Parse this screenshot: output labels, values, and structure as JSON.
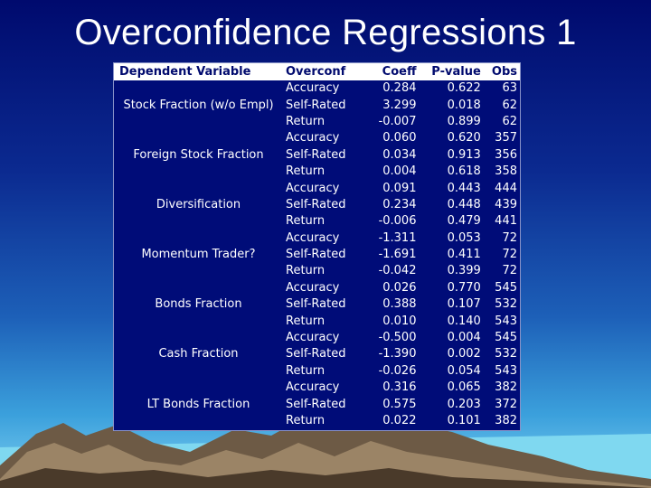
{
  "title": "Overconfidence Regressions 1",
  "colors": {
    "table_bg": "#000c78",
    "header_bg": "#ffffff",
    "header_text": "#000a6e"
  },
  "table": {
    "headers": [
      "Dependent Variable",
      "Overconf",
      "Coeff",
      "P-value",
      "Obs"
    ],
    "groups": [
      {
        "dependent": "Stock Fraction (w/o Empl)",
        "rows": [
          [
            "Accuracy",
            "0.284",
            "0.622",
            "63"
          ],
          [
            "Self-Rated",
            "3.299",
            "0.018",
            "62"
          ],
          [
            "Return",
            "-0.007",
            "0.899",
            "62"
          ]
        ]
      },
      {
        "dependent": "Foreign Stock Fraction",
        "rows": [
          [
            "Accuracy",
            "0.060",
            "0.620",
            "357"
          ],
          [
            "Self-Rated",
            "0.034",
            "0.913",
            "356"
          ],
          [
            "Return",
            "0.004",
            "0.618",
            "358"
          ]
        ]
      },
      {
        "dependent": "Diversification",
        "rows": [
          [
            "Accuracy",
            "0.091",
            "0.443",
            "444"
          ],
          [
            "Self-Rated",
            "0.234",
            "0.448",
            "439"
          ],
          [
            "Return",
            "-0.006",
            "0.479",
            "441"
          ]
        ]
      },
      {
        "dependent": "Momentum Trader?",
        "rows": [
          [
            "Accuracy",
            "-1.311",
            "0.053",
            "72"
          ],
          [
            "Self-Rated",
            "-1.691",
            "0.411",
            "72"
          ],
          [
            "Return",
            "-0.042",
            "0.399",
            "72"
          ]
        ]
      },
      {
        "dependent": "Bonds Fraction",
        "rows": [
          [
            "Accuracy",
            "0.026",
            "0.770",
            "545"
          ],
          [
            "Self-Rated",
            "0.388",
            "0.107",
            "532"
          ],
          [
            "Return",
            "0.010",
            "0.140",
            "543"
          ]
        ]
      },
      {
        "dependent": "Cash Fraction",
        "rows": [
          [
            "Accuracy",
            "-0.500",
            "0.004",
            "545"
          ],
          [
            "Self-Rated",
            "-1.390",
            "0.002",
            "532"
          ],
          [
            "Return",
            "-0.026",
            "0.054",
            "543"
          ]
        ]
      },
      {
        "dependent": "LT Bonds Fraction",
        "rows": [
          [
            "Accuracy",
            "0.316",
            "0.065",
            "382"
          ],
          [
            "Self-Rated",
            "0.575",
            "0.203",
            "372"
          ],
          [
            "Return",
            "0.022",
            "0.101",
            "382"
          ]
        ]
      }
    ]
  }
}
